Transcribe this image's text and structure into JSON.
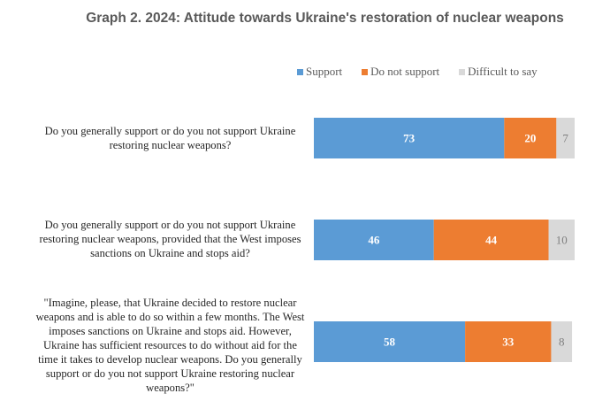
{
  "chart_data": {
    "type": "bar",
    "orientation": "horizontal",
    "stacked": true,
    "title": "Graph 2. 2024: Attitude towards Ukraine's restoration of nuclear weapons",
    "legend_position": "top-right",
    "categories": [
      "Do you generally support or do you not support Ukraine restoring nuclear weapons?",
      "Do you generally support or do you not support Ukraine restoring nuclear weapons, provided that the West imposes sanctions on Ukraine and stops aid?",
      "\"Imagine, please, that Ukraine decided to restore nuclear weapons and is able to do so within a few months. The West imposes sanctions on Ukraine and stops aid. However, Ukraine has sufficient resources to do without aid for the time it takes to develop nuclear weapons. Do you generally support or do you not support Ukraine restoring nuclear weapons?\""
    ],
    "series": [
      {
        "name": "Support",
        "color": "#5b9bd5",
        "label_color": "#ffffff",
        "values": [
          73,
          46,
          58
        ]
      },
      {
        "name": "Do not support",
        "color": "#ed7d31",
        "label_color": "#ffffff",
        "values": [
          20,
          44,
          33
        ]
      },
      {
        "name": "Difficult to say",
        "color": "#d9d9d9",
        "label_color": "#7f7f7f",
        "values": [
          7,
          10,
          8
        ]
      }
    ],
    "xlim": [
      0,
      100
    ],
    "grid": false
  }
}
